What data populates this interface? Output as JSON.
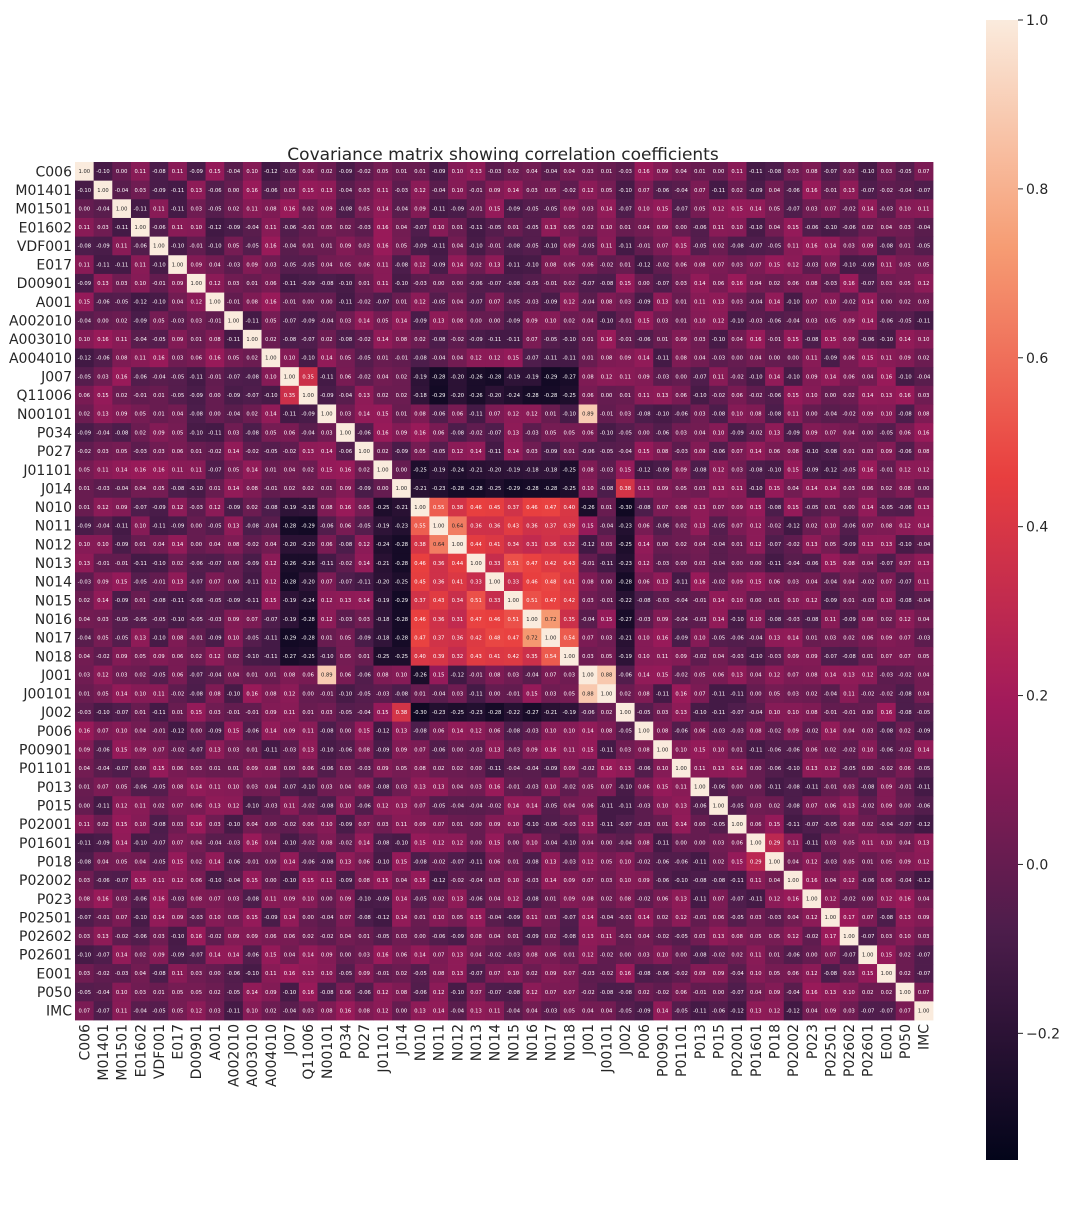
{
  "chart_data": {
    "type": "heatmap",
    "title": "Covariance matrix showing correlation coefficients",
    "labels": [
      "C006",
      "M01401",
      "M01501",
      "E01602",
      "VDF001",
      "E017",
      "D00901",
      "A001",
      "A002010",
      "A003010",
      "A004010",
      "J007",
      "Q11006",
      "N00101",
      "P034",
      "P027",
      "J01101",
      "J014",
      "N010",
      "N011",
      "N012",
      "N013",
      "N014",
      "N015",
      "N016",
      "N017",
      "N018",
      "J001",
      "J00101",
      "J002",
      "P006",
      "P00901",
      "P01101",
      "P013",
      "P015",
      "P02001",
      "P01601",
      "P018",
      "P02002",
      "P023",
      "P02501",
      "P02602",
      "P02601",
      "E001",
      "P050",
      "IMC"
    ],
    "diagonal_value": 1.0,
    "notable_correlations": [
      {
        "a": "J001",
        "b": "N00101",
        "value": 0.89
      },
      {
        "a": "J001",
        "b": "J00101",
        "value": 0.88
      },
      {
        "a": "N016",
        "b": "N017",
        "value": 0.72
      },
      {
        "a": "N011",
        "b": "N012",
        "value": 0.64
      },
      {
        "a": "N010",
        "b": "N011",
        "value": 0.55
      },
      {
        "a": "N013",
        "b": "N015",
        "value": 0.51
      },
      {
        "a": "N015",
        "b": "N016",
        "value": 0.51
      },
      {
        "a": "N017",
        "b": "N018",
        "value": 0.54
      },
      {
        "a": "J007",
        "b": "Q11006",
        "value": 0.35
      },
      {
        "a": "P018",
        "b": "P01601",
        "value": 0.29
      },
      {
        "a": "J014",
        "b": "J002",
        "value": 0.38
      },
      {
        "a": "P02602",
        "b": "P02501",
        "value": 0.17
      },
      {
        "a": "J001",
        "b": "N010",
        "value": -0.26
      },
      {
        "a": "J002",
        "b": "N011",
        "value": -0.23
      }
    ],
    "colorbar": {
      "min": -0.35,
      "max": 1.0,
      "ticks": [
        "1.0",
        "0.8",
        "0.6",
        "0.4",
        "0.2",
        "0.0",
        "−0.2"
      ],
      "tick_values": [
        1.0,
        0.8,
        0.6,
        0.4,
        0.2,
        0.0,
        -0.2
      ],
      "colors": [
        "#03051a",
        "#4c1d4b",
        "#a11a5b",
        "#e83f3f",
        "#f69c73",
        "#faebdd"
      ]
    },
    "annotated": true,
    "grid": false
  }
}
